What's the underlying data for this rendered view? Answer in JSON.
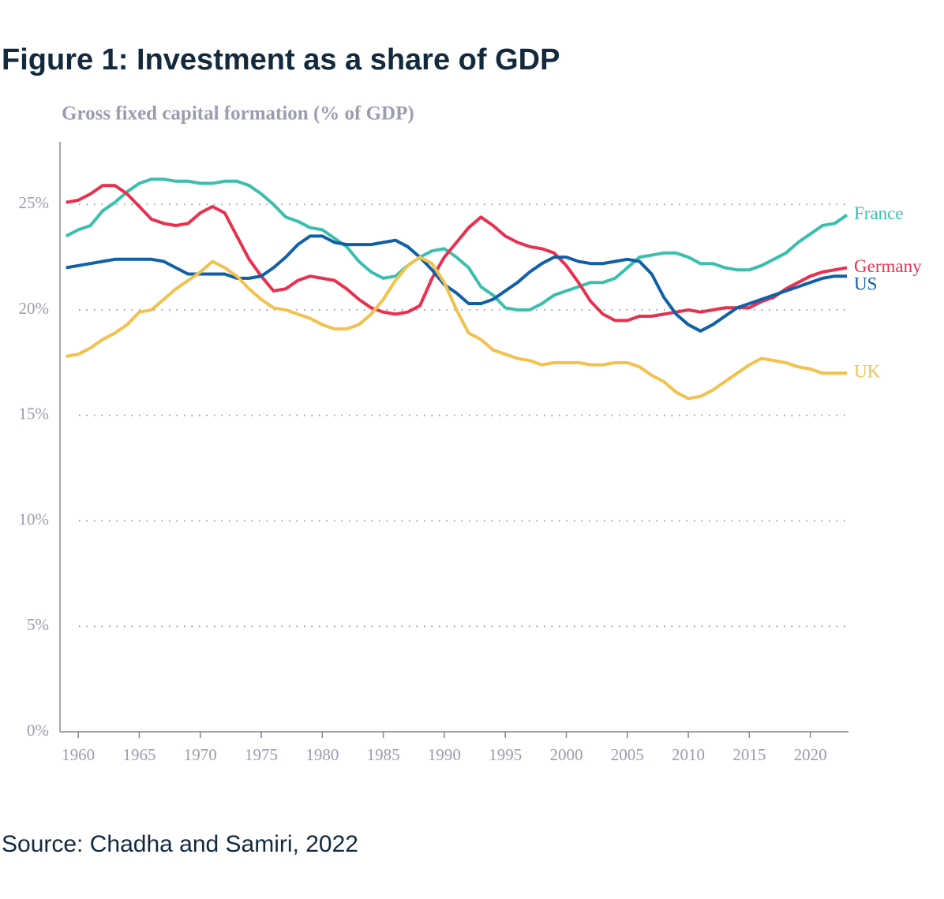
{
  "heading": "Figure 1: Investment as a share of GDP",
  "source": "Source: Chadha and Samiri, 2022",
  "chart_data": {
    "type": "line",
    "title": "Gross fixed capital formation (% of GDP)",
    "x": [
      1959,
      1960,
      1961,
      1962,
      1963,
      1964,
      1965,
      1966,
      1967,
      1968,
      1969,
      1970,
      1971,
      1972,
      1973,
      1974,
      1975,
      1976,
      1977,
      1978,
      1979,
      1980,
      1981,
      1982,
      1983,
      1984,
      1985,
      1986,
      1987,
      1988,
      1989,
      1990,
      1991,
      1992,
      1993,
      1994,
      1995,
      1996,
      1997,
      1998,
      1999,
      2000,
      2001,
      2002,
      2003,
      2004,
      2005,
      2006,
      2007,
      2008,
      2009,
      2010,
      2011,
      2012,
      2013,
      2014,
      2015,
      2016,
      2017,
      2018,
      2019,
      2020,
      2021,
      2022,
      2023
    ],
    "xlim": [
      1958.5,
      2023
    ],
    "xticks": [
      1960,
      1965,
      1970,
      1975,
      1980,
      1985,
      1990,
      1995,
      2000,
      2005,
      2010,
      2015,
      2020
    ],
    "ylim": [
      0,
      28.3
    ],
    "yticks": [
      {
        "value": 0,
        "label": "0%"
      },
      {
        "value": 5,
        "label": "5%"
      },
      {
        "value": 10,
        "label": "10%"
      },
      {
        "value": 15,
        "label": "15%"
      },
      {
        "value": 20,
        "label": "20%"
      },
      {
        "value": 25,
        "label": "25%"
      }
    ],
    "grid": true,
    "series": [
      {
        "name": "France",
        "color": "#3bbfad",
        "values": [
          23.5,
          23.8,
          24.0,
          24.7,
          25.1,
          25.6,
          26.0,
          26.2,
          26.2,
          26.1,
          26.1,
          26.0,
          26.0,
          26.1,
          26.1,
          25.9,
          25.5,
          25.0,
          24.4,
          24.2,
          23.9,
          23.8,
          23.4,
          23.0,
          22.3,
          21.8,
          21.5,
          21.6,
          22.1,
          22.5,
          22.8,
          22.9,
          22.5,
          22.0,
          21.1,
          20.7,
          20.1,
          20.0,
          20.0,
          20.3,
          20.7,
          20.9,
          21.1,
          21.3,
          21.3,
          21.5,
          22.0,
          22.5,
          22.6,
          22.7,
          22.7,
          22.5,
          22.2,
          22.2,
          22.0,
          21.9,
          21.9,
          22.1,
          22.4,
          22.7,
          23.2,
          23.6,
          24.0,
          24.1,
          24.5
        ]
      },
      {
        "name": "Germany",
        "color": "#e8304f",
        "values": [
          25.1,
          25.2,
          25.5,
          25.9,
          25.9,
          25.5,
          24.9,
          24.3,
          24.1,
          24.0,
          24.1,
          24.6,
          24.9,
          24.6,
          23.5,
          22.4,
          21.6,
          20.9,
          21.0,
          21.4,
          21.6,
          21.5,
          21.4,
          21.0,
          20.5,
          20.1,
          19.9,
          19.8,
          19.9,
          20.2,
          21.5,
          22.5,
          23.2,
          23.9,
          24.4,
          24.0,
          23.5,
          23.2,
          23.0,
          22.9,
          22.7,
          22.1,
          21.3,
          20.4,
          19.8,
          19.5,
          19.5,
          19.7,
          19.7,
          19.8,
          19.9,
          20.0,
          19.9,
          20.0,
          20.1,
          20.1,
          20.1,
          20.4,
          20.6,
          21.0,
          21.3,
          21.6,
          21.8,
          21.9,
          22.0
        ]
      },
      {
        "name": "US",
        "color": "#1060a8",
        "values": [
          22.0,
          22.1,
          22.2,
          22.3,
          22.4,
          22.4,
          22.4,
          22.4,
          22.3,
          22.0,
          21.7,
          21.7,
          21.7,
          21.7,
          21.5,
          21.5,
          21.6,
          22.0,
          22.5,
          23.1,
          23.5,
          23.5,
          23.2,
          23.1,
          23.1,
          23.1,
          23.2,
          23.3,
          23.0,
          22.5,
          21.9,
          21.2,
          20.8,
          20.3,
          20.3,
          20.5,
          20.9,
          21.3,
          21.8,
          22.2,
          22.5,
          22.5,
          22.3,
          22.2,
          22.2,
          22.3,
          22.4,
          22.3,
          21.7,
          20.6,
          19.8,
          19.3,
          19.0,
          19.3,
          19.7,
          20.1,
          20.3,
          20.5,
          20.7,
          20.9,
          21.1,
          21.3,
          21.5,
          21.6,
          21.6
        ]
      },
      {
        "name": "UK",
        "color": "#f2c14e",
        "values": [
          17.8,
          17.9,
          18.2,
          18.6,
          18.9,
          19.3,
          19.9,
          20.0,
          20.5,
          21.0,
          21.4,
          21.8,
          22.3,
          22.0,
          21.6,
          21.0,
          20.5,
          20.1,
          20.0,
          19.8,
          19.6,
          19.3,
          19.1,
          19.1,
          19.3,
          19.8,
          20.5,
          21.4,
          22.1,
          22.5,
          22.2,
          21.3,
          20.0,
          18.9,
          18.6,
          18.1,
          17.9,
          17.7,
          17.6,
          17.4,
          17.5,
          17.5,
          17.5,
          17.4,
          17.4,
          17.5,
          17.5,
          17.3,
          16.9,
          16.6,
          16.1,
          15.8,
          15.9,
          16.2,
          16.6,
          17.0,
          17.4,
          17.7,
          17.6,
          17.5,
          17.3,
          17.2,
          17.0,
          17.0,
          17.0
        ]
      }
    ]
  }
}
